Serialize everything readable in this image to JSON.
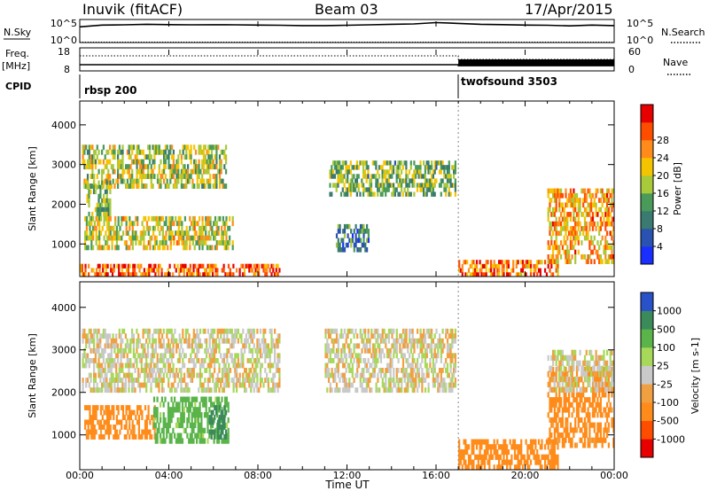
{
  "header": {
    "station": "Inuvik (fitACF)",
    "beam": "Beam 03",
    "date": "17/Apr/2015"
  },
  "panel_labels": {
    "nsky": "N.Sky",
    "nsearch": "N.Search",
    "freq_line1": "Freq.",
    "freq_line2": "[MHz]",
    "nave": "Nave",
    "cpid": "CPID",
    "nsky_ticks": [
      "10^5",
      "10^0"
    ],
    "nsearch_ticks": [
      "10^5",
      "10^0"
    ],
    "freq_ticks": [
      "18",
      "8"
    ],
    "nave_ticks": [
      "60",
      "0"
    ]
  },
  "cpid_modes": [
    {
      "label": "rbsp 200",
      "start_hour": 0
    },
    {
      "label": "twofsound 3503",
      "start_hour": 17
    }
  ],
  "colors": {
    "power": [
      "#1a2fff",
      "#2a52b0",
      "#3b7a70",
      "#4a9a5a",
      "#a7c93a",
      "#f5c400",
      "#ff8c1a",
      "#ff4d00",
      "#e60000"
    ],
    "velocity": [
      "#e60000",
      "#ff4d00",
      "#ff8c1a",
      "#f0a040",
      "#c9c9c9",
      "#a8d85a",
      "#5ab44a",
      "#3a8a5a",
      "#2a52c8"
    ]
  },
  "chart_data": [
    {
      "type": "line",
      "title": "Inuvik (fitACF)",
      "series": [
        {
          "name": "N.Sky",
          "x": [
            0,
            1,
            2,
            3,
            4,
            5,
            6,
            7,
            8,
            9,
            10,
            11,
            12,
            13,
            14,
            15,
            16,
            17,
            18,
            19,
            20,
            21,
            22,
            23,
            24
          ],
          "values": [
            3000,
            8000,
            9000,
            12000,
            10000,
            9000,
            9500,
            9000,
            8000,
            7000,
            6000,
            6000,
            7000,
            9000,
            12000,
            15000,
            30000,
            20000,
            12000,
            10000,
            8000,
            7000,
            5000,
            8000,
            6000
          ]
        },
        {
          "name": "N.Search",
          "x": [
            0,
            6,
            12,
            18,
            24
          ],
          "values": [
            1,
            1,
            1,
            1,
            1
          ]
        }
      ],
      "xlim": [
        0,
        24
      ],
      "ylim": [
        1,
        100000
      ],
      "yscale": "log"
    },
    {
      "type": "line",
      "series": [
        {
          "name": "Freq.",
          "x": [
            0,
            17,
            17,
            24
          ],
          "values": [
            10.5,
            10.5,
            10.0,
            10.0
          ]
        },
        {
          "name": "Nave",
          "x": [
            0,
            17,
            17,
            24
          ],
          "values": [
            30,
            30,
            20,
            20
          ]
        }
      ],
      "xlim": [
        0,
        24
      ],
      "ylim_freq": [
        8,
        18
      ],
      "ylim_nave": [
        0,
        60
      ]
    },
    {
      "type": "heatmap",
      "quantity": "Power [dB]",
      "ylabel": "Slant Range [km]",
      "yticks": [
        1000,
        2000,
        3000,
        4000
      ],
      "ylim": [
        180,
        4600
      ],
      "xlim": [
        0,
        24
      ],
      "colorbar_ticks": [
        4,
        8,
        12,
        16,
        20,
        24,
        28
      ],
      "vlim": [
        0,
        32
      ],
      "echo_regions": [
        {
          "t0": 0.1,
          "t1": 6.6,
          "r0": 2400,
          "r1": 3500,
          "level": 16
        },
        {
          "t0": 0.3,
          "t1": 1.4,
          "r0": 1700,
          "r1": 2600,
          "level": 14
        },
        {
          "t0": 0.2,
          "t1": 6.9,
          "r0": 850,
          "r1": 1700,
          "level": 18
        },
        {
          "t0": 0.0,
          "t1": 9.0,
          "r0": 180,
          "r1": 500,
          "level": 26
        },
        {
          "t0": 11.2,
          "t1": 16.9,
          "r0": 2200,
          "r1": 3100,
          "level": 14
        },
        {
          "t0": 11.5,
          "t1": 13.0,
          "r0": 800,
          "r1": 1500,
          "level": 10
        },
        {
          "t0": 17.0,
          "t1": 21.5,
          "r0": 180,
          "r1": 600,
          "level": 24
        },
        {
          "t0": 21.0,
          "t1": 24.0,
          "r0": 500,
          "r1": 2400,
          "level": 22
        }
      ]
    },
    {
      "type": "heatmap",
      "quantity": "Velocity [m s-1]",
      "ylabel": "Slant Range [km]",
      "xlabel": "Time UT",
      "xticks": [
        "00:00",
        "04:00",
        "08:00",
        "12:00",
        "16:00",
        "20:00",
        "00:00"
      ],
      "yticks": [
        1000,
        2000,
        3000,
        4000
      ],
      "ylim": [
        180,
        4600
      ],
      "xlim": [
        0,
        24
      ],
      "colorbar_ticks": [
        "1000",
        "500",
        "100",
        "25",
        "-25",
        "-100",
        "-500",
        "-1000"
      ],
      "echo_regions": [
        {
          "t0": 0.1,
          "t1": 9.0,
          "r0": 2000,
          "r1": 3500,
          "velocity": 0
        },
        {
          "t0": 0.2,
          "t1": 3.4,
          "r0": 900,
          "r1": 1700,
          "velocity": -150
        },
        {
          "t0": 3.3,
          "t1": 6.7,
          "r0": 800,
          "r1": 1900,
          "velocity": 150
        },
        {
          "t0": 5.8,
          "t1": 6.6,
          "r0": 900,
          "r1": 1700,
          "velocity": 700
        },
        {
          "t0": 11.0,
          "t1": 16.9,
          "r0": 2000,
          "r1": 3500,
          "velocity": 0
        },
        {
          "t0": 17.0,
          "t1": 21.5,
          "r0": 180,
          "r1": 900,
          "velocity": -200
        },
        {
          "t0": 21.0,
          "t1": 24.0,
          "r0": 700,
          "r1": 2600,
          "velocity": -150
        },
        {
          "t0": 21.0,
          "t1": 24.0,
          "r0": 2000,
          "r1": 3000,
          "velocity": 0
        }
      ]
    }
  ]
}
